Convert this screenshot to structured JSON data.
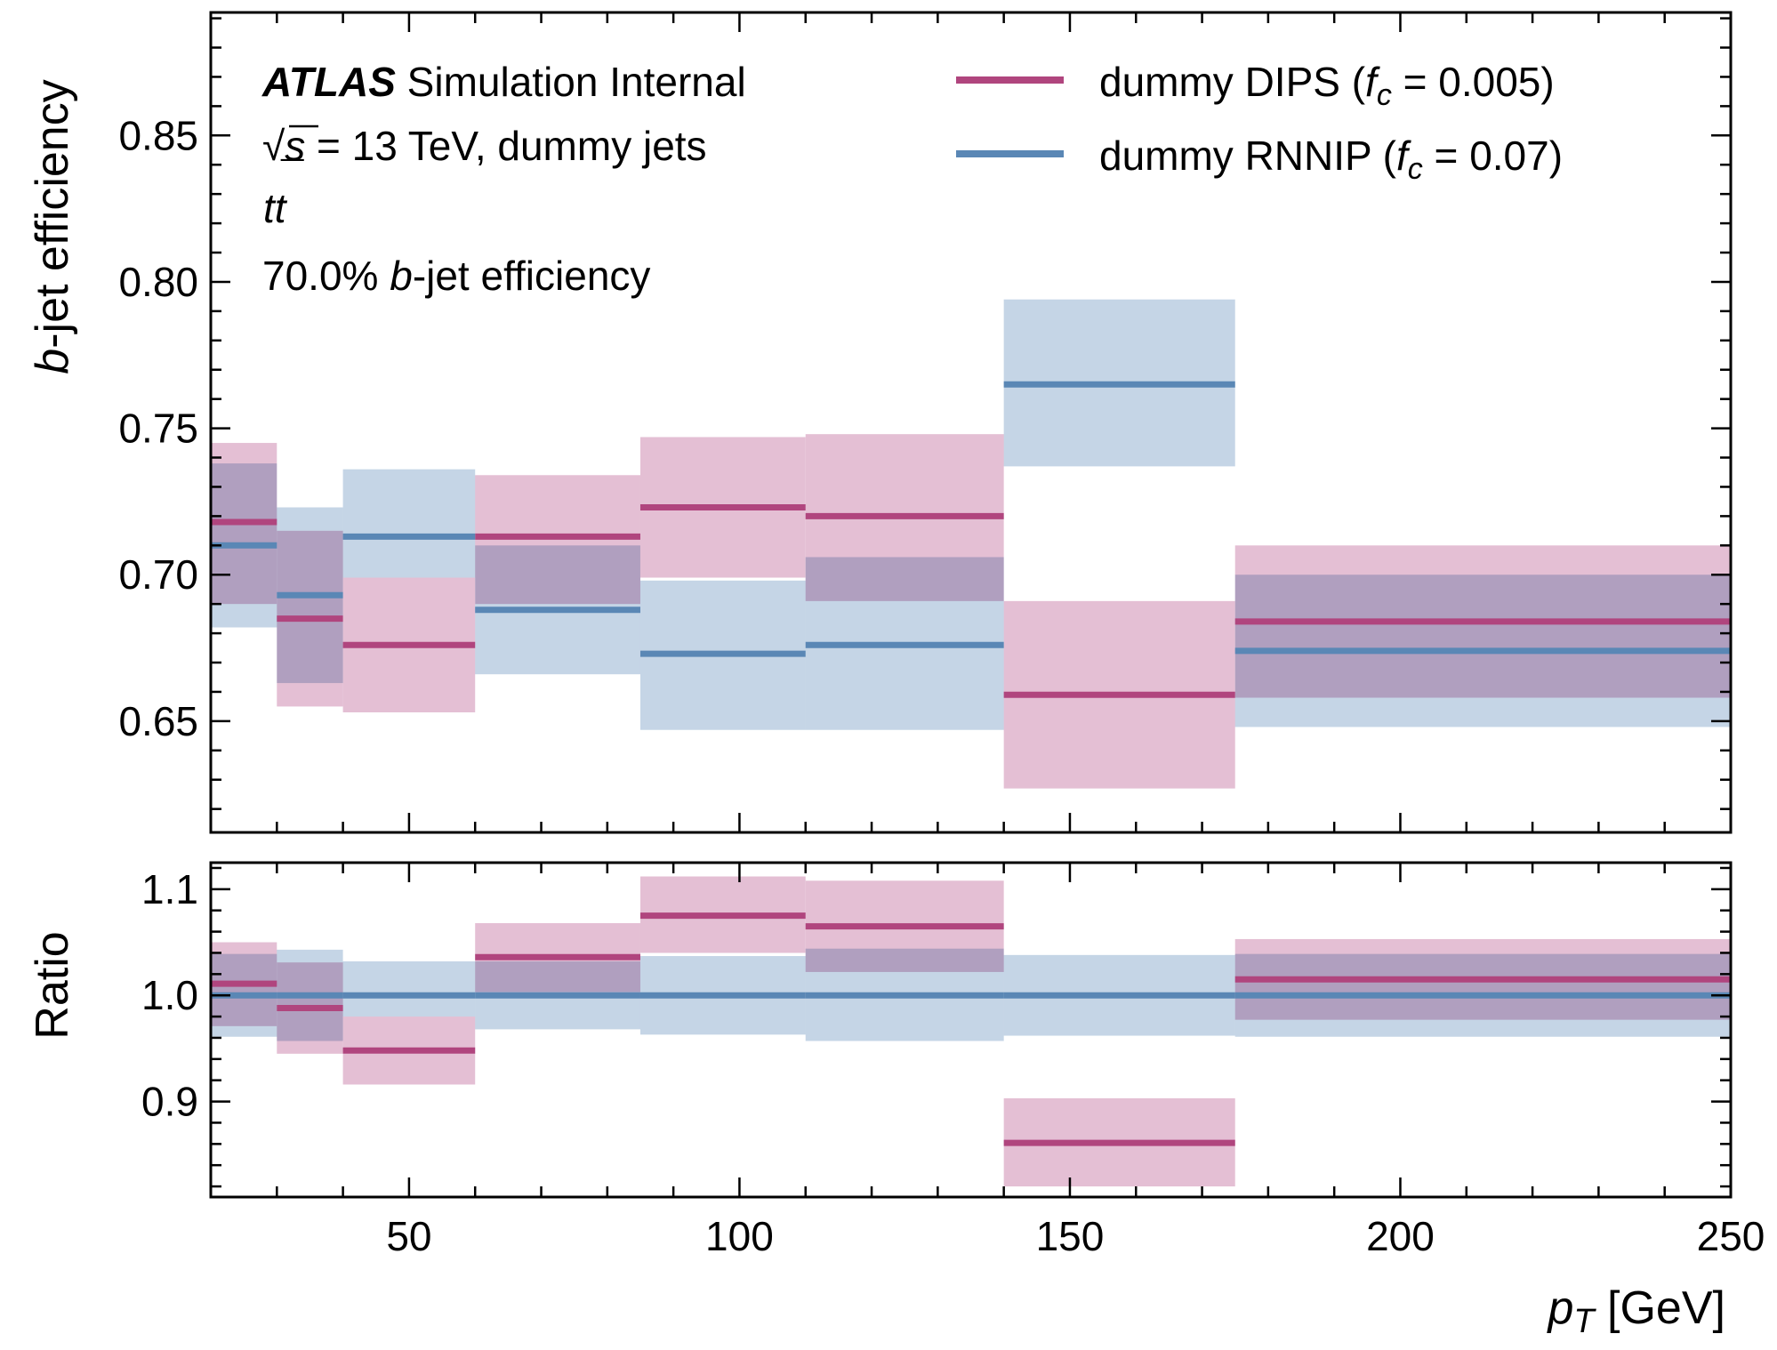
{
  "chart_data": [
    {
      "type": "step-band",
      "panel": "main",
      "xlabel_main": "p",
      "xlabel_sub": "T",
      "xlabel_unit": " [GeV]",
      "ylabel_italic": "b",
      "ylabel_rest": "-jet efficiency",
      "xlim": [
        20,
        250
      ],
      "ylim": [
        0.612,
        0.892
      ],
      "x_ticks": [
        50,
        100,
        150,
        200,
        250
      ],
      "x_tick_labels": [
        "50",
        "100",
        "150",
        "200",
        "250"
      ],
      "y_ticks": [
        0.65,
        0.7,
        0.75,
        0.8,
        0.85
      ],
      "y_tick_labels": [
        "0.65",
        "0.70",
        "0.75",
        "0.80",
        "0.85"
      ],
      "bin_edges": [
        20,
        30,
        40,
        60,
        85,
        110,
        140,
        175,
        250
      ],
      "series": [
        {
          "name": "DIPS",
          "label_prefix": "dummy DIPS (",
          "label_f": "f",
          "label_sub": "c",
          "label_suffix": " = 0.005)",
          "color": "#b0457e",
          "band_color": "#e4bfd4",
          "values": [
            0.718,
            0.685,
            0.676,
            0.713,
            0.723,
            0.72,
            0.659,
            0.684
          ],
          "lower": [
            0.69,
            0.655,
            0.653,
            0.69,
            0.699,
            0.691,
            0.627,
            0.658
          ],
          "upper": [
            0.745,
            0.715,
            0.699,
            0.734,
            0.747,
            0.748,
            0.691,
            0.71
          ]
        },
        {
          "name": "RNNIP",
          "label_prefix": "dummy RNNIP (",
          "label_f": "f",
          "label_sub": "c",
          "label_suffix": " = 0.07)",
          "color": "#5a87b5",
          "band_color": "#c5d5e6",
          "values": [
            0.71,
            0.693,
            0.713,
            0.688,
            0.673,
            0.676,
            0.765,
            0.674
          ],
          "lower": [
            0.682,
            0.663,
            0.699,
            0.666,
            0.647,
            0.647,
            0.737,
            0.648
          ],
          "upper": [
            0.738,
            0.723,
            0.736,
            0.71,
            0.698,
            0.706,
            0.794,
            0.7
          ]
        }
      ],
      "annotations": {
        "atlas_bold": "ATLAS",
        "atlas_rest": " Simulation Internal",
        "sqrt": "√",
        "s": "s",
        "energy": " = 13 TeV, dummy jets",
        "process_t1": "t",
        "process_t2": "t",
        "process_bar": "¯",
        "wp_prefix": "70.0% ",
        "wp_b": "b",
        "wp_suffix": "-jet efficiency"
      },
      "legend_position": "top-right"
    },
    {
      "type": "step-band",
      "panel": "ratio",
      "ylabel": "Ratio",
      "xlim": [
        20,
        250
      ],
      "ylim": [
        0.81,
        1.125
      ],
      "y_ticks": [
        0.9,
        1.0,
        1.1
      ],
      "y_tick_labels": [
        "0.9",
        "1.0",
        "1.1"
      ],
      "bin_edges": [
        20,
        30,
        40,
        60,
        85,
        110,
        140,
        175,
        250
      ],
      "series": [
        {
          "name": "DIPS",
          "color": "#b0457e",
          "band_color": "#e4bfd4",
          "values": [
            1.011,
            0.988,
            0.948,
            1.036,
            1.075,
            1.065,
            0.861,
            1.015
          ],
          "lower": [
            0.971,
            0.945,
            0.916,
            1.003,
            1.04,
            1.022,
            0.82,
            0.977
          ],
          "upper": [
            1.05,
            1.031,
            0.98,
            1.068,
            1.112,
            1.108,
            0.903,
            1.053
          ]
        },
        {
          "name": "RNNIP",
          "color": "#5a87b5",
          "band_color": "#c5d5e6",
          "values": [
            1.0,
            1.0,
            1.0,
            1.0,
            1.0,
            1.0,
            1.0,
            1.0
          ],
          "lower": [
            0.961,
            0.957,
            0.98,
            0.968,
            0.963,
            0.957,
            0.962,
            0.961
          ],
          "upper": [
            1.039,
            1.043,
            1.032,
            1.032,
            1.037,
            1.044,
            1.038,
            1.039
          ]
        }
      ]
    }
  ]
}
